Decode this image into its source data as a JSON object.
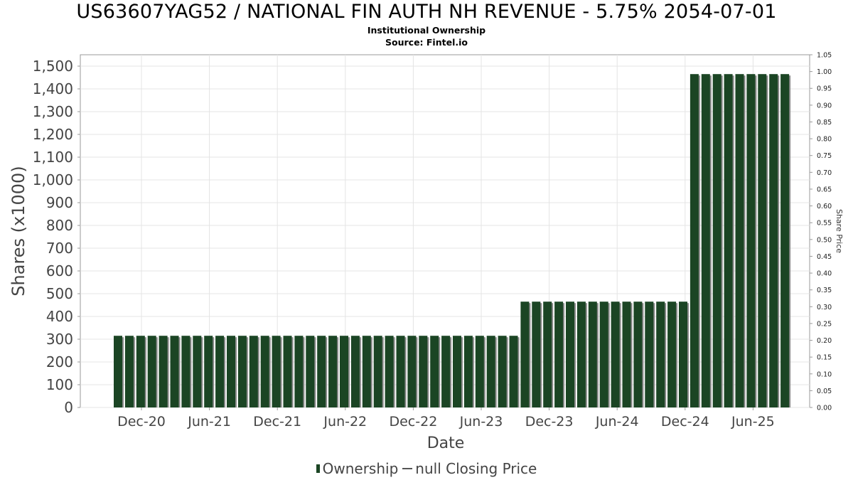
{
  "chart_data": {
    "type": "bar",
    "title": "US63607YAG52 / NATIONAL FIN AUTH NH REVENUE - 5.75% 2054-07-01",
    "subtitle": "Institutional Ownership",
    "source": "Source: Fintel.io",
    "xlabel": "Date",
    "ylabel": "Shares (x1000)",
    "y2label": "Share Price",
    "ylim": [
      0,
      1550
    ],
    "y2lim": [
      0,
      1.05
    ],
    "yticks": [
      "0",
      "100",
      "200",
      "300",
      "400",
      "500",
      "600",
      "700",
      "800",
      "900",
      "1,000",
      "1,100",
      "1,200",
      "1,300",
      "1,400",
      "1,500"
    ],
    "y2ticks": [
      "0.00",
      "0.05",
      "0.10",
      "0.15",
      "0.20",
      "0.25",
      "0.30",
      "0.35",
      "0.40",
      "0.45",
      "0.50",
      "0.55",
      "0.60",
      "0.65",
      "0.70",
      "0.75",
      "0.80",
      "0.85",
      "0.90",
      "0.95",
      "1.00",
      "1.05"
    ],
    "xticks": [
      "Dec-20",
      "Jun-21",
      "Dec-21",
      "Jun-22",
      "Dec-22",
      "Jun-23",
      "Dec-23",
      "Jun-24",
      "Dec-24",
      "Jun-25"
    ],
    "grid": true,
    "legend_position": "bottom",
    "series": [
      {
        "name": "Ownership",
        "color": "#1b4524",
        "values": [
          315,
          315,
          315,
          315,
          315,
          315,
          315,
          315,
          315,
          315,
          315,
          315,
          315,
          315,
          315,
          315,
          315,
          315,
          315,
          315,
          315,
          315,
          315,
          315,
          315,
          315,
          315,
          315,
          315,
          315,
          315,
          315,
          315,
          315,
          315,
          315,
          465,
          465,
          465,
          465,
          465,
          465,
          465,
          465,
          465,
          465,
          465,
          465,
          465,
          465,
          465,
          1465,
          1465,
          1465,
          1465,
          1465,
          1465,
          1465,
          1465,
          1465
        ]
      },
      {
        "name": "null Closing Price",
        "color": "#555555",
        "values": []
      }
    ]
  }
}
